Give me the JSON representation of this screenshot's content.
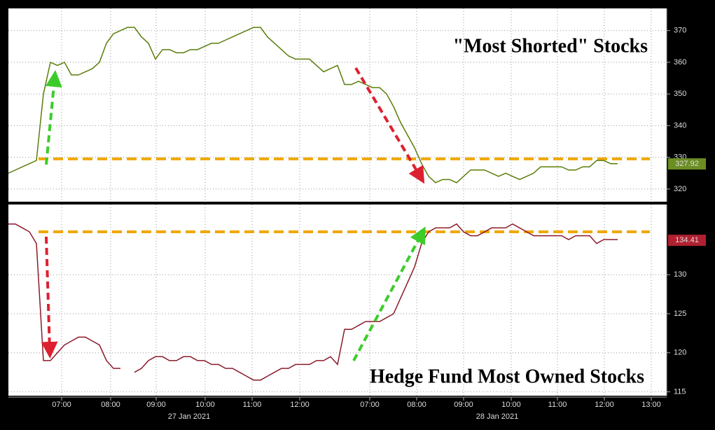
{
  "chart_data": [
    {
      "type": "line",
      "title": "\"Most Shorted\" Stocks",
      "x": [
        0,
        1,
        2,
        3,
        4,
        5,
        6,
        7,
        8,
        9,
        10,
        11,
        12,
        13,
        14,
        15,
        16,
        17,
        18,
        19,
        20,
        21,
        22,
        23,
        24,
        25,
        26,
        27,
        28,
        29,
        30,
        31,
        32,
        33,
        34,
        35,
        36,
        37,
        38,
        39,
        40,
        41,
        42,
        43,
        44,
        45,
        46,
        47,
        48,
        49,
        50,
        51,
        52,
        53,
        54,
        55,
        56,
        57,
        58,
        59,
        60,
        61,
        62,
        63,
        64,
        65,
        66,
        67,
        68,
        69,
        70,
        71,
        72,
        73,
        74,
        75,
        76,
        77,
        78,
        79,
        80,
        81,
        82,
        83,
        84,
        85,
        86,
        87
      ],
      "series": [
        {
          "color": "#5a7d0a",
          "values": [
            325,
            326,
            327,
            328,
            329,
            350,
            360,
            359,
            360,
            356,
            356,
            357,
            358,
            360,
            366,
            369,
            370,
            371,
            371,
            368,
            366,
            361,
            364,
            364,
            363,
            363,
            364,
            364,
            365,
            366,
            366,
            367,
            368,
            369,
            370,
            371,
            371,
            368,
            366,
            364,
            362,
            361,
            361,
            361,
            359,
            357,
            358,
            359,
            353,
            353,
            354,
            353,
            352,
            352,
            350,
            346,
            341,
            337,
            333,
            328,
            324,
            322,
            323,
            323,
            322,
            324,
            326,
            326,
            326,
            325,
            324,
            325,
            324,
            323,
            324,
            325,
            327,
            327,
            327,
            327,
            326,
            326,
            327,
            327,
            329,
            329,
            328,
            328
          ]
        }
      ],
      "last_value": {
        "value": 327.92,
        "color": "#6b8e23"
      },
      "reference_line": {
        "value": 329.5,
        "color": "#f0a800"
      },
      "xlim": [
        0,
        94
      ],
      "ylim": [
        316,
        377
      ],
      "yticks": [
        320,
        330,
        340,
        350,
        360,
        370
      ]
    },
    {
      "type": "line",
      "title": "Hedge Fund Most Owned Stocks",
      "x": [
        0,
        1,
        2,
        3,
        4,
        5,
        6,
        7,
        8,
        9,
        10,
        11,
        12,
        13,
        14,
        15,
        16,
        17,
        18,
        19,
        20,
        21,
        22,
        23,
        24,
        25,
        26,
        27,
        28,
        29,
        30,
        31,
        32,
        33,
        34,
        35,
        36,
        37,
        38,
        39,
        40,
        41,
        42,
        43,
        44,
        45,
        46,
        47,
        48,
        49,
        50,
        51,
        52,
        53,
        54,
        55,
        56,
        57,
        58,
        59,
        60,
        61,
        62,
        63,
        64,
        65,
        66,
        67,
        68,
        69,
        70,
        71,
        72,
        73,
        74,
        75,
        76,
        77,
        78,
        79,
        80,
        81,
        82,
        83,
        84,
        85,
        86,
        87
      ],
      "series": [
        {
          "color": "#8b1a2a",
          "values": [
            136.5,
            136.5,
            136,
            135.5,
            134,
            119,
            119,
            120,
            121,
            121.5,
            122,
            122,
            121.5,
            121,
            119,
            118,
            118,
            null,
            117.5,
            118,
            119,
            119.5,
            119.5,
            119,
            119,
            119.5,
            119.5,
            119,
            119,
            118.5,
            118.5,
            118,
            118,
            117.5,
            117,
            116.5,
            116.5,
            117,
            117.5,
            118,
            118,
            118.5,
            118.5,
            118.5,
            119,
            119,
            119.5,
            118.5,
            123,
            123,
            123.5,
            124,
            124,
            124,
            124.5,
            125,
            127,
            129,
            131,
            134,
            135.5,
            136,
            136,
            136,
            136.5,
            135.5,
            135,
            135,
            135.5,
            136,
            136,
            136,
            136.5,
            136,
            135.5,
            135,
            135,
            135,
            135,
            135,
            134.5,
            135,
            135,
            135,
            134,
            134.5,
            134.5,
            134.5
          ]
        }
      ],
      "last_value": {
        "value": 134.41,
        "color": "#b02030"
      },
      "reference_line": {
        "value": 135.5,
        "color": "#f0a800"
      },
      "xlim": [
        0,
        94
      ],
      "ylim": [
        114.5,
        139
      ],
      "yticks": [
        115,
        120,
        125,
        130
      ],
      "xticks": [
        {
          "value": 7.6,
          "label": "07:00"
        },
        {
          "value": 14.6,
          "label": "08:00"
        },
        {
          "value": 21.1,
          "label": "09:00"
        },
        {
          "value": 28.1,
          "label": "10:00"
        },
        {
          "value": 34.8,
          "label": "11:00"
        },
        {
          "value": 41.6,
          "label": "12:00"
        },
        {
          "value": 51.6,
          "label": "07:00"
        },
        {
          "value": 58.3,
          "label": "08:00"
        },
        {
          "value": 65,
          "label": "09:00"
        },
        {
          "value": 71.8,
          "label": "10:00"
        },
        {
          "value": 78.4,
          "label": "11:00"
        },
        {
          "value": 85.1,
          "label": "12:00"
        },
        {
          "value": 91.8,
          "label": "13:00"
        }
      ],
      "date_labels": [
        {
          "value": 25.8,
          "label": "27 Jan 2021"
        },
        {
          "value": 69.8,
          "label": "28 Jan 2021"
        }
      ],
      "grid": true
    }
  ]
}
